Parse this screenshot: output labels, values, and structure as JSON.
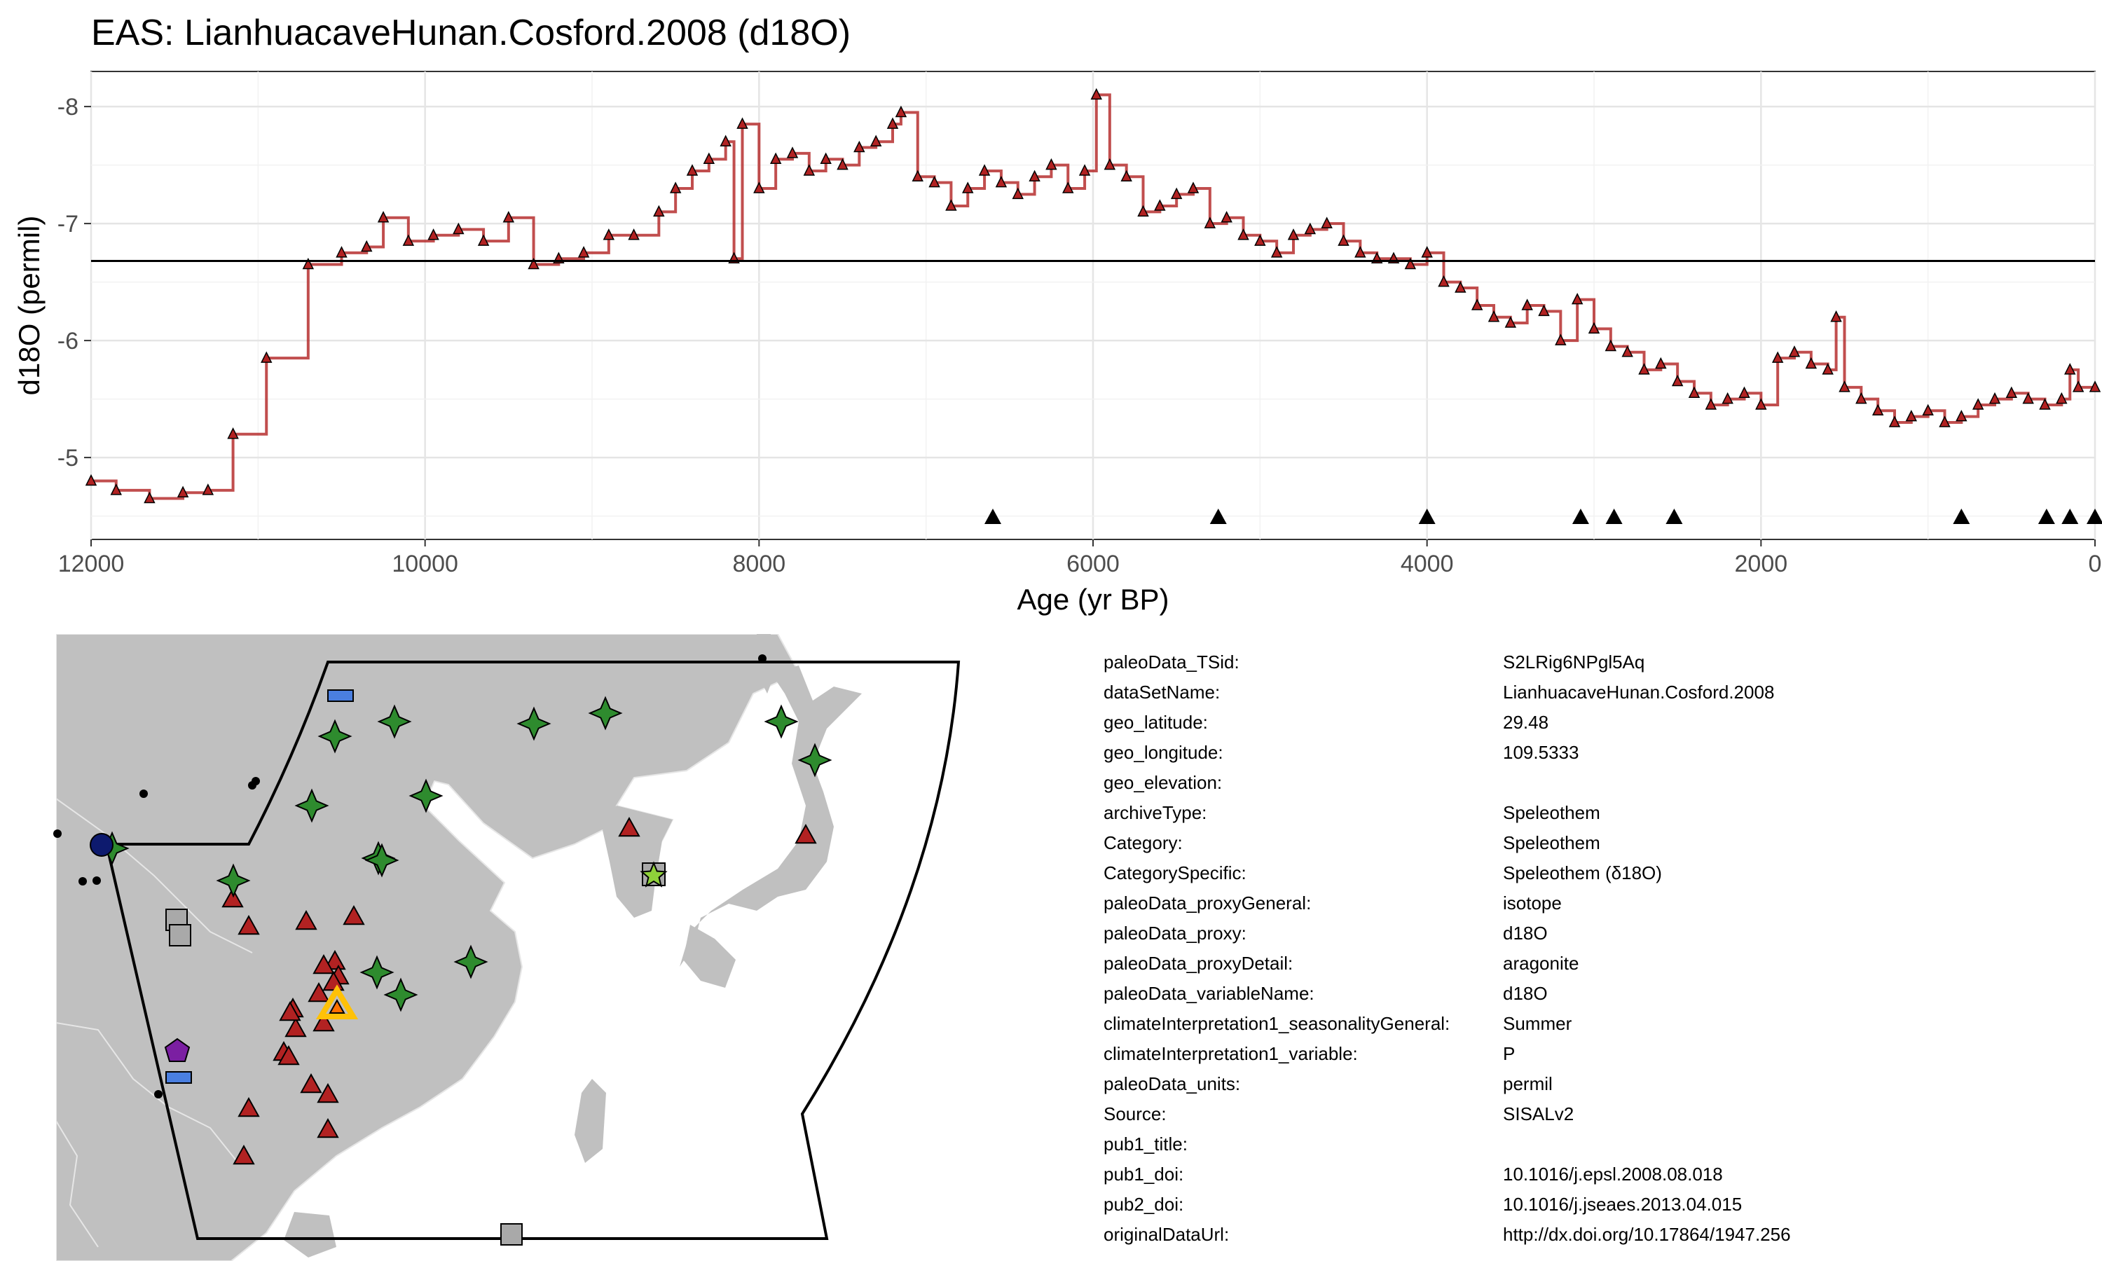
{
  "chart_data": {
    "type": "line",
    "title": "EAS: LianhuacaveHunan.Cosford.2008 (d18O)",
    "xlabel": "Age (yr BP)",
    "ylabel": "d18O (permil)",
    "x_reversed": true,
    "xlim": [
      12000,
      0
    ],
    "ylim": [
      -4.3,
      -8.3
    ],
    "y_reversed": true,
    "x_ticks": [
      12000,
      10000,
      8000,
      6000,
      4000,
      2000,
      0
    ],
    "y_ticks": [
      -8,
      -7,
      -6,
      -5
    ],
    "mean_line": -6.68,
    "grid": true,
    "series_color": "#8b1a1a",
    "series_fill_color": "#b22222",
    "series": [
      {
        "x": [
          12000,
          11850,
          11650,
          11450,
          11300,
          11150,
          10950,
          10700,
          10500,
          10350,
          10250,
          10100,
          9950,
          9800,
          9650,
          9500,
          9350,
          9200,
          9050,
          8900,
          8750,
          8600,
          8500,
          8400,
          8300,
          8200,
          8150,
          8100,
          8000,
          7900,
          7800,
          7700,
          7600,
          7500,
          7400,
          7300,
          7200,
          7150,
          7050,
          6950,
          6850,
          6750,
          6650,
          6550,
          6450,
          6350,
          6250,
          6150,
          6050,
          5980,
          5900,
          5800,
          5700,
          5600,
          5500,
          5400,
          5300,
          5200,
          5100,
          5000,
          4900,
          4800,
          4700,
          4600,
          4500,
          4400,
          4300,
          4200,
          4100,
          4000,
          3900,
          3800,
          3700,
          3600,
          3500,
          3400,
          3300,
          3200,
          3100,
          3000,
          2900,
          2800,
          2700,
          2600,
          2500,
          2400,
          2300,
          2200,
          2100,
          2000,
          1900,
          1800,
          1700,
          1600,
          1550,
          1500,
          1400,
          1300,
          1200,
          1100,
          1000,
          900,
          800,
          700,
          600,
          500,
          400,
          300,
          200,
          150,
          100,
          0
        ],
        "y": [
          -4.8,
          -4.72,
          -4.65,
          -4.7,
          -4.72,
          -5.2,
          -5.85,
          -6.65,
          -6.75,
          -6.8,
          -7.05,
          -6.85,
          -6.9,
          -6.95,
          -6.85,
          -7.05,
          -6.65,
          -6.7,
          -6.75,
          -6.9,
          -6.9,
          -7.1,
          -7.3,
          -7.45,
          -7.55,
          -7.7,
          -6.7,
          -7.85,
          -7.3,
          -7.55,
          -7.6,
          -7.45,
          -7.55,
          -7.5,
          -7.65,
          -7.7,
          -7.85,
          -7.95,
          -7.4,
          -7.35,
          -7.15,
          -7.3,
          -7.45,
          -7.35,
          -7.25,
          -7.4,
          -7.5,
          -7.3,
          -7.45,
          -8.1,
          -7.5,
          -7.4,
          -7.1,
          -7.15,
          -7.25,
          -7.3,
          -7.0,
          -7.05,
          -6.9,
          -6.85,
          -6.75,
          -6.9,
          -6.95,
          -7.0,
          -6.85,
          -6.75,
          -6.7,
          -6.7,
          -6.65,
          -6.75,
          -6.5,
          -6.45,
          -6.3,
          -6.2,
          -6.15,
          -6.3,
          -6.25,
          -6.0,
          -6.35,
          -6.1,
          -5.95,
          -5.9,
          -5.75,
          -5.8,
          -5.65,
          -5.55,
          -5.45,
          -5.5,
          -5.55,
          -5.45,
          -5.85,
          -5.9,
          -5.8,
          -5.75,
          -6.2,
          -5.6,
          -5.5,
          -5.4,
          -5.3,
          -5.35,
          -5.4,
          -5.3,
          -5.35,
          -5.45,
          -5.5,
          -5.55,
          -5.5,
          -5.45,
          -5.5,
          -5.75,
          -5.6,
          -5.6
        ]
      }
    ],
    "age_markers": [
      6600,
      5250,
      4000,
      3080,
      2880,
      2520,
      800,
      290,
      150,
      0
    ]
  },
  "map": {
    "land_color": "#c0c0c0",
    "region_outline_color": "#000000",
    "marker_colors": {
      "triangle": "#b22222",
      "star4": "#2e8b2e",
      "square": "#a9a9a9",
      "rect": "#4a7fe0",
      "pentagon": "#7b1fa2",
      "circle": "#0d1a6e",
      "star5": "#8fd13a",
      "highlight": "#ffc107"
    }
  },
  "metadata": {
    "rows": [
      {
        "key": "paleoData_TSid:",
        "value": "S2LRig6NPgl5Aq"
      },
      {
        "key": "dataSetName:",
        "value": "LianhuacaveHunan.Cosford.2008"
      },
      {
        "key": "geo_latitude:",
        "value": "29.48"
      },
      {
        "key": "geo_longitude:",
        "value": "109.5333"
      },
      {
        "key": "geo_elevation:",
        "value": ""
      },
      {
        "key": "archiveType:",
        "value": "Speleothem"
      },
      {
        "key": "Category:",
        "value": "Speleothem"
      },
      {
        "key": "CategorySpecific:",
        "value": "Speleothem (δ18O)"
      },
      {
        "key": "paleoData_proxyGeneral:",
        "value": "isotope"
      },
      {
        "key": "paleoData_proxy:",
        "value": "d18O"
      },
      {
        "key": "paleoData_proxyDetail:",
        "value": "aragonite"
      },
      {
        "key": "paleoData_variableName:",
        "value": "d18O"
      },
      {
        "key": "climateInterpretation1_seasonalityGeneral:",
        "value": "Summer"
      },
      {
        "key": "climateInterpretation1_variable:",
        "value": "P"
      },
      {
        "key": "paleoData_units:",
        "value": "permil"
      },
      {
        "key": "Source:",
        "value": "SISALv2"
      },
      {
        "key": "pub1_title:",
        "value": ""
      },
      {
        "key": "pub1_doi:",
        "value": "10.1016/j.epsl.2008.08.018"
      },
      {
        "key": "pub2_doi:",
        "value": "10.1016/j.jseaes.2013.04.015"
      },
      {
        "key": "originalDataUrl:",
        "value": "http://dx.doi.org/10.17864/1947.256"
      }
    ]
  }
}
